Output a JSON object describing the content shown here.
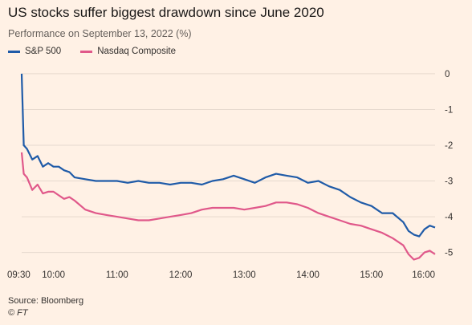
{
  "chart_data": {
    "type": "line",
    "title": "US stocks suffer biggest drawdown since June 2020",
    "subtitle": "Performance on September 13, 2022 (%)",
    "xlabel": "",
    "ylabel": "",
    "x_ticks": [
      "09:30",
      "10:00",
      "11:00",
      "12:00",
      "13:00",
      "14:00",
      "15:00",
      "16:00"
    ],
    "y_ticks": [
      "0",
      "-1",
      "-2",
      "-3",
      "-4",
      "-5"
    ],
    "xlim": [
      "09:30",
      "16:00"
    ],
    "ylim": [
      -5.3,
      0.2
    ],
    "grid": "horizontal",
    "legend_position": "top-left",
    "x": [
      "09:30",
      "09:32",
      "09:35",
      "09:40",
      "09:45",
      "09:50",
      "09:55",
      "10:00",
      "10:05",
      "10:10",
      "10:15",
      "10:20",
      "10:30",
      "10:40",
      "10:50",
      "11:00",
      "11:10",
      "11:20",
      "11:30",
      "11:40",
      "11:50",
      "12:00",
      "12:10",
      "12:20",
      "12:30",
      "12:40",
      "12:50",
      "13:00",
      "13:10",
      "13:20",
      "13:30",
      "13:40",
      "13:50",
      "14:00",
      "14:10",
      "14:20",
      "14:30",
      "14:40",
      "14:50",
      "15:00",
      "15:10",
      "15:20",
      "15:30",
      "15:35",
      "15:40",
      "15:45",
      "15:50",
      "15:55",
      "16:00"
    ],
    "series": [
      {
        "name": "S&P 500",
        "color": "#1f5ba8",
        "values": [
          0.0,
          -2.0,
          -2.1,
          -2.4,
          -2.3,
          -2.6,
          -2.5,
          -2.6,
          -2.6,
          -2.7,
          -2.75,
          -2.9,
          -2.95,
          -3.0,
          -3.0,
          -3.0,
          -3.05,
          -3.0,
          -3.05,
          -3.05,
          -3.1,
          -3.05,
          -3.05,
          -3.1,
          -3.0,
          -2.95,
          -2.85,
          -2.95,
          -3.05,
          -2.9,
          -2.8,
          -2.85,
          -2.9,
          -3.05,
          -3.0,
          -3.15,
          -3.25,
          -3.45,
          -3.6,
          -3.7,
          -3.9,
          -3.9,
          -4.15,
          -4.4,
          -4.5,
          -4.55,
          -4.35,
          -4.25,
          -4.3
        ]
      },
      {
        "name": "Nasdaq Composite",
        "color": "#e0588a",
        "values": [
          -2.2,
          -2.8,
          -2.9,
          -3.25,
          -3.1,
          -3.35,
          -3.3,
          -3.3,
          -3.4,
          -3.5,
          -3.45,
          -3.55,
          -3.8,
          -3.9,
          -3.95,
          -4.0,
          -4.05,
          -4.1,
          -4.1,
          -4.05,
          -4.0,
          -3.95,
          -3.9,
          -3.8,
          -3.75,
          -3.75,
          -3.75,
          -3.8,
          -3.75,
          -3.7,
          -3.6,
          -3.6,
          -3.65,
          -3.75,
          -3.9,
          -4.0,
          -4.1,
          -4.2,
          -4.25,
          -4.35,
          -4.45,
          -4.6,
          -4.8,
          -5.05,
          -5.2,
          -5.15,
          -5.0,
          -4.95,
          -5.05
        ]
      }
    ]
  },
  "footer": {
    "source": "Source: Bloomberg",
    "credit": "© FT"
  }
}
